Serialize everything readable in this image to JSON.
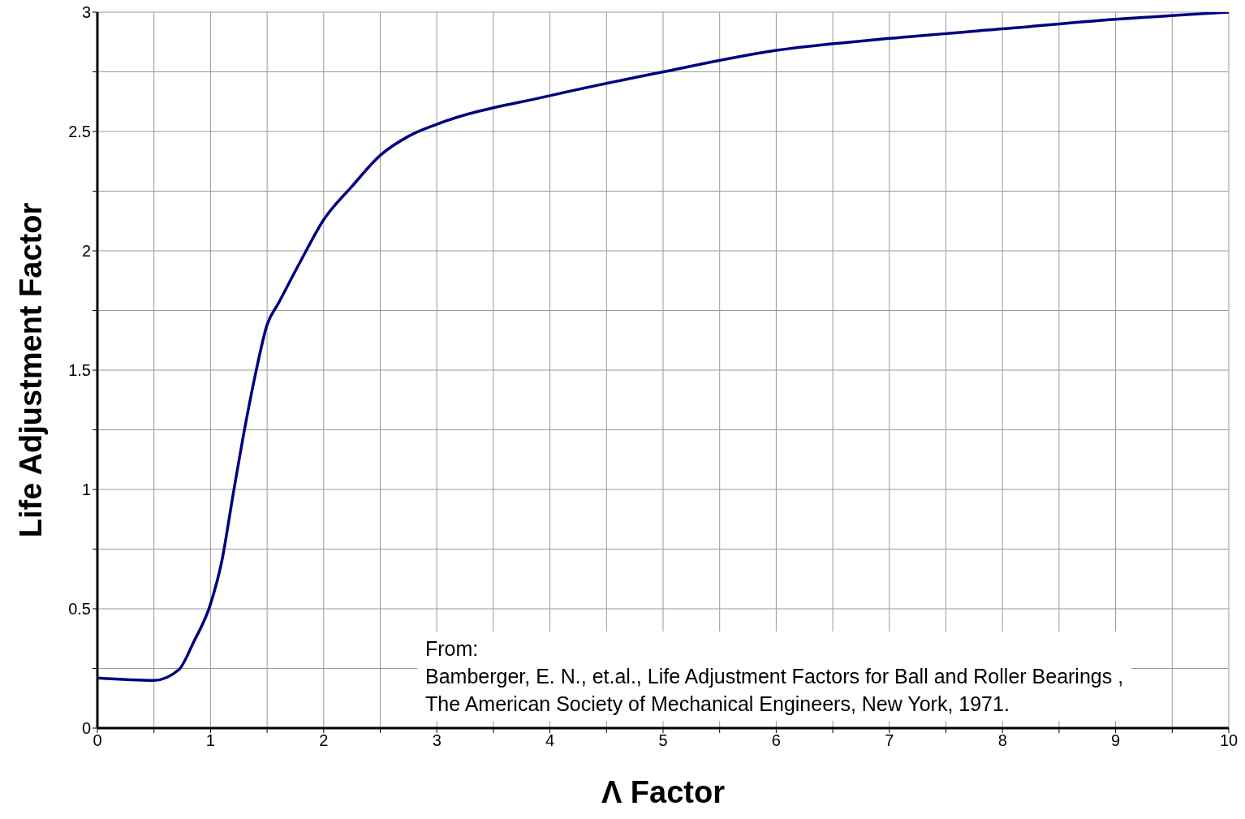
{
  "chart_data": {
    "type": "line",
    "xlabel": "Λ Factor",
    "ylabel": "Life Adjustment Factor",
    "x": [
      0,
      0.5,
      0.72,
      0.85,
      1,
      1.1,
      1.2,
      1.3,
      1.4,
      1.5,
      1.6,
      1.8,
      2,
      2.25,
      2.5,
      2.75,
      3,
      4,
      5,
      6,
      7,
      8,
      9,
      10
    ],
    "series": [
      {
        "color": "#000080",
        "values": [
          0.21,
          0.2,
          0.245,
          0.36,
          0.52,
          0.7,
          0.98,
          1.25,
          1.49,
          1.69,
          1.78,
          1.96,
          2.13,
          2.27,
          2.4,
          2.48,
          2.53,
          2.65,
          2.75,
          2.84,
          2.89,
          2.93,
          2.97,
          3.0
        ]
      }
    ],
    "xlim": [
      0,
      10
    ],
    "ylim": [
      0,
      3
    ],
    "xticks": [
      0,
      {
        "value": 0.5,
        "label": null
      },
      1,
      {
        "value": 1.5,
        "label": null
      },
      2,
      {
        "value": 2.5,
        "label": null
      },
      3,
      {
        "value": 3.5,
        "label": null
      },
      4,
      {
        "value": 4.5,
        "label": null
      },
      5,
      {
        "value": 5.5,
        "label": null
      },
      6,
      {
        "value": 6.5,
        "label": null
      },
      7,
      {
        "value": 7.5,
        "label": null
      },
      8,
      {
        "value": 8.5,
        "label": null
      },
      9,
      {
        "value": 9.5,
        "label": null
      },
      10
    ],
    "yticks": [
      0,
      {
        "value": 0.25,
        "label": null
      },
      0.5,
      {
        "value": 0.75,
        "label": null
      },
      1,
      {
        "value": 1.25,
        "label": null
      },
      1.5,
      {
        "value": 1.75,
        "label": null
      },
      2,
      {
        "value": 2.25,
        "label": null
      },
      2.5,
      {
        "value": 2.75,
        "label": null
      },
      3
    ],
    "grid": true,
    "marker": "none",
    "line_style": "solid",
    "annotations": [
      "From:",
      "Bamberger, E. N., et.al., Life Adjustment Factors for Ball and Roller Bearings ,",
      "The American Society of Mechanical Engineers, New York, 1971."
    ]
  }
}
